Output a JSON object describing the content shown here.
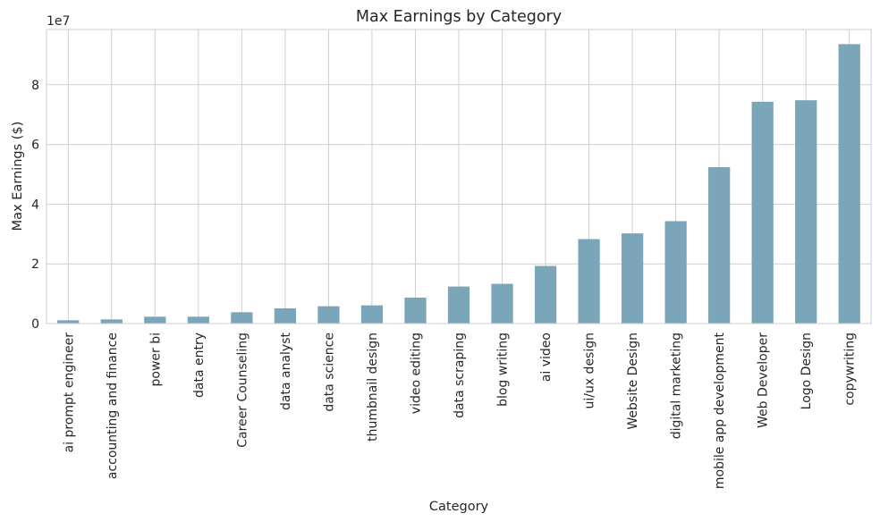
{
  "chart_data": {
    "type": "bar",
    "title": "Max Earnings by Category",
    "xlabel": "Category",
    "ylabel": "Max Earnings ($)",
    "y_offset_label": "1e7",
    "y_scale": 10000000,
    "ylim": [
      0,
      9.85
    ],
    "yticks": [
      0,
      2,
      4,
      6,
      8
    ],
    "grid": true,
    "bar_color": "#7ba5b8",
    "categories": [
      "ai prompt engineer",
      "accounting and finance",
      "power bi",
      "data entry",
      "Career Counseling",
      "data analyst",
      "data science",
      "thumbnail design",
      "video editing",
      "data scraping",
      "blog writing",
      "ai video",
      "ui/ux design",
      "Website Design",
      "digital marketing",
      "mobile app development",
      "Web Developer",
      "Logo Design",
      "copywriting"
    ],
    "values": [
      1100000,
      1400000,
      2300000,
      2300000,
      3800000,
      5100000,
      5800000,
      6100000,
      8700000,
      12400000,
      13300000,
      19300000,
      28300000,
      30200000,
      34300000,
      52400000,
      74300000,
      74800000,
      93600000
    ]
  }
}
